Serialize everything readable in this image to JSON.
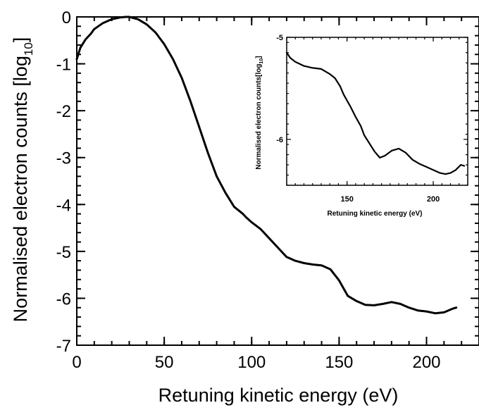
{
  "chart_data": [
    {
      "type": "line",
      "title": "",
      "xlabel": "Retuning kinetic energy (eV)",
      "ylabel": "Normalised electron counts [log",
      "ylabel_subscript": "10",
      "ylabel_close": "]",
      "xlim": [
        0,
        230
      ],
      "ylim": [
        -7,
        0
      ],
      "xticks": [
        0,
        50,
        100,
        150,
        200
      ],
      "xtick_labels": [
        "0",
        "50",
        "100",
        "150",
        "200"
      ],
      "yticks": [
        0,
        -1,
        -2,
        -3,
        -4,
        -5,
        -6,
        -7
      ],
      "ytick_labels": [
        "0",
        "-1",
        "-2",
        "-3",
        "-4",
        "-5",
        "-6",
        "-7"
      ],
      "grid": false,
      "series": [
        {
          "x": [
            0,
            2,
            5,
            8,
            10,
            15,
            20,
            25,
            28,
            30,
            35,
            40,
            45,
            50,
            55,
            60,
            65,
            70,
            75,
            80,
            85,
            90,
            95,
            97,
            100,
            105,
            110,
            115,
            120,
            125,
            130,
            135,
            140,
            145,
            150,
            155,
            160,
            165,
            170,
            175,
            180,
            185,
            190,
            195,
            200,
            205,
            210,
            215,
            217
          ],
          "values": [
            -0.9,
            -0.66,
            -0.48,
            -0.36,
            -0.26,
            -0.13,
            -0.05,
            -0.01,
            0.0,
            0.0,
            -0.05,
            -0.16,
            -0.33,
            -0.58,
            -0.9,
            -1.3,
            -1.8,
            -2.35,
            -2.9,
            -3.4,
            -3.75,
            -4.05,
            -4.2,
            -4.28,
            -4.38,
            -4.52,
            -4.72,
            -4.92,
            -5.12,
            -5.2,
            -5.25,
            -5.28,
            -5.3,
            -5.38,
            -5.62,
            -5.95,
            -6.06,
            -6.14,
            -6.15,
            -6.12,
            -6.08,
            -6.12,
            -6.2,
            -6.26,
            -6.28,
            -6.32,
            -6.3,
            -6.22,
            -6.2
          ]
        }
      ]
    },
    {
      "type": "line",
      "title": "",
      "xlabel": "Retuning kinetic energy (eV)",
      "ylabel": "Normalised electron counts[log",
      "ylabel_subscript": "10",
      "ylabel_close": "]",
      "xlim": [
        115,
        220
      ],
      "ylim": [
        -6.45,
        -5
      ],
      "xticks": [
        150,
        200
      ],
      "xtick_labels": [
        "150",
        "200"
      ],
      "yticks": [
        -5,
        -6
      ],
      "ytick_labels": [
        "-5",
        "-6"
      ],
      "grid": false,
      "legend": "none",
      "series": [
        {
          "x": [
            115,
            117,
            120,
            125,
            130,
            135,
            140,
            143,
            146,
            148,
            150,
            152,
            155,
            158,
            160,
            163,
            166,
            169,
            172,
            176,
            180,
            184,
            188,
            192,
            196,
            200,
            204,
            207,
            210,
            213,
            216,
            218
          ],
          "values": [
            -5.15,
            -5.2,
            -5.24,
            -5.28,
            -5.3,
            -5.31,
            -5.36,
            -5.4,
            -5.48,
            -5.56,
            -5.62,
            -5.68,
            -5.78,
            -5.87,
            -5.96,
            -6.04,
            -6.12,
            -6.18,
            -6.16,
            -6.11,
            -6.09,
            -6.13,
            -6.2,
            -6.24,
            -6.27,
            -6.3,
            -6.33,
            -6.34,
            -6.33,
            -6.3,
            -6.25,
            -6.26
          ]
        }
      ]
    }
  ]
}
